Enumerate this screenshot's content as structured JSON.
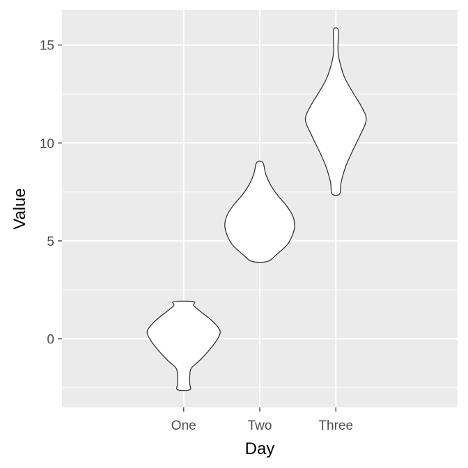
{
  "chart_data": {
    "type": "violin",
    "title": "",
    "xlabel": "Day",
    "ylabel": "Value",
    "categories": [
      "One",
      "Two",
      "Three"
    ],
    "ylim": [
      -3.5,
      16.8
    ],
    "yticks": [
      0,
      5,
      10,
      15
    ],
    "grid": true,
    "legend": "none",
    "colors": {
      "panel": "#ebebeb",
      "grid": "#ffffff",
      "violin_fill": "#ffffff",
      "violin_outline": "#333333",
      "tick_label": "#4d4d4d",
      "axis_title": "#000000"
    },
    "series": [
      {
        "category": "One",
        "min": -2.6,
        "max": 1.9,
        "density_profile": [
          {
            "y": -2.6,
            "half_width": 0.08
          },
          {
            "y": -2.3,
            "half_width": 0.08
          },
          {
            "y": -1.9,
            "half_width": 0.08
          },
          {
            "y": -1.5,
            "half_width": 0.1
          },
          {
            "y": -1.1,
            "half_width": 0.21
          },
          {
            "y": -0.6,
            "half_width": 0.33
          },
          {
            "y": -0.1,
            "half_width": 0.43
          },
          {
            "y": 0.3,
            "half_width": 0.48
          },
          {
            "y": 0.6,
            "half_width": 0.45
          },
          {
            "y": 1.0,
            "half_width": 0.35
          },
          {
            "y": 1.4,
            "half_width": 0.22
          },
          {
            "y": 1.7,
            "half_width": 0.13
          },
          {
            "y": 1.9,
            "half_width": 0.13
          }
        ]
      },
      {
        "category": "Two",
        "min": 3.95,
        "max": 9.0,
        "density_profile": [
          {
            "y": 3.95,
            "half_width": 0.1
          },
          {
            "y": 4.3,
            "half_width": 0.22
          },
          {
            "y": 4.8,
            "half_width": 0.36
          },
          {
            "y": 5.3,
            "half_width": 0.43
          },
          {
            "y": 5.8,
            "half_width": 0.46
          },
          {
            "y": 6.3,
            "half_width": 0.43
          },
          {
            "y": 6.8,
            "half_width": 0.35
          },
          {
            "y": 7.3,
            "half_width": 0.24
          },
          {
            "y": 7.8,
            "half_width": 0.15
          },
          {
            "y": 8.4,
            "half_width": 0.08
          },
          {
            "y": 9.0,
            "half_width": 0.04
          }
        ]
      },
      {
        "category": "Three",
        "min": 7.4,
        "max": 15.8,
        "density_profile": [
          {
            "y": 7.4,
            "half_width": 0.05
          },
          {
            "y": 8.0,
            "half_width": 0.07
          },
          {
            "y": 8.8,
            "half_width": 0.13
          },
          {
            "y": 9.6,
            "half_width": 0.22
          },
          {
            "y": 10.4,
            "half_width": 0.32
          },
          {
            "y": 11.2,
            "half_width": 0.4
          },
          {
            "y": 11.9,
            "half_width": 0.33
          },
          {
            "y": 12.6,
            "half_width": 0.22
          },
          {
            "y": 13.3,
            "half_width": 0.12
          },
          {
            "y": 14.0,
            "half_width": 0.06
          },
          {
            "y": 14.6,
            "half_width": 0.03
          },
          {
            "y": 15.2,
            "half_width": 0.03
          },
          {
            "y": 15.8,
            "half_width": 0.03
          }
        ]
      }
    ]
  }
}
